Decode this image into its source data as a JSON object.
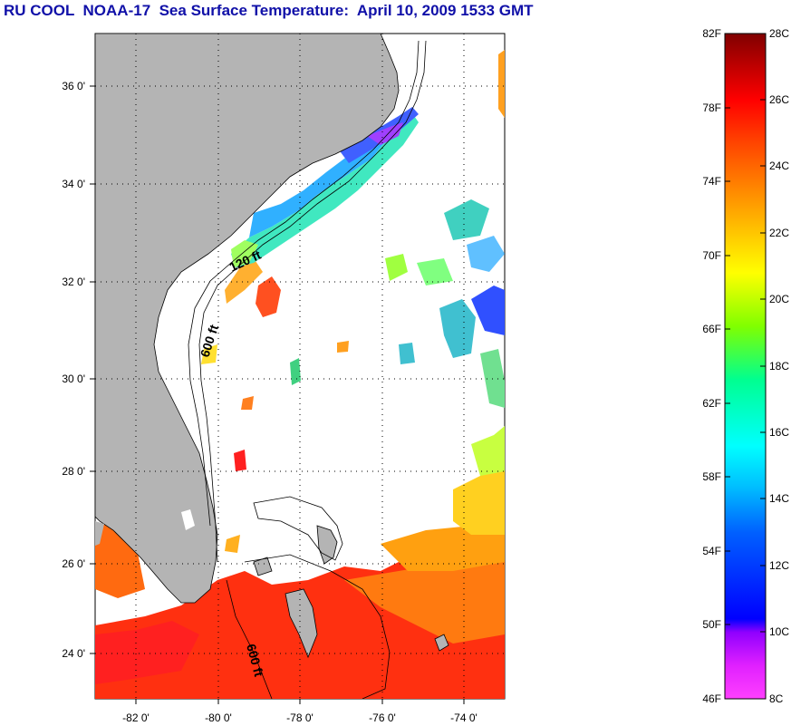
{
  "header": {
    "title": "RU COOL  NOAA-17  Sea Surface Temperature:  April 10, 2009 1533 GMT"
  },
  "map": {
    "lon_range": [
      -83,
      -73
    ],
    "lat_range": [
      23,
      37
    ],
    "lon_ticks": [
      "-82 0'",
      "-80 0'",
      "-78 0'",
      "-76 0'",
      "-74 0'"
    ],
    "lat_ticks": [
      "36 0'",
      "34 0'",
      "32 0'",
      "30 0'",
      "28 0'",
      "26 0'",
      "24 0'"
    ],
    "contour_labels": {
      "c120": "120 ft",
      "c600a": "600 ft",
      "c600b": "600 ft"
    },
    "colors": {
      "land": "#b4b4b4",
      "ocean_nodata": "#ffffff",
      "grid": "#000000"
    }
  },
  "colorbar": {
    "fahrenheit_labels": [
      "82F",
      "78F",
      "74F",
      "70F",
      "66F",
      "62F",
      "58F",
      "54F",
      "50F",
      "46F"
    ],
    "celsius_labels": [
      "28C",
      "26C",
      "24C",
      "22C",
      "20C",
      "18C",
      "16C",
      "14C",
      "12C",
      "10C",
      "8C"
    ],
    "range_c": [
      8,
      28
    ],
    "colors": [
      "#ff40ff",
      "#8000ff",
      "#0000ff",
      "#00a0ff",
      "#00ffff",
      "#00ff80",
      "#80ff00",
      "#ffff00",
      "#ffa000",
      "#ff4000",
      "#ff0000",
      "#800000"
    ]
  }
}
